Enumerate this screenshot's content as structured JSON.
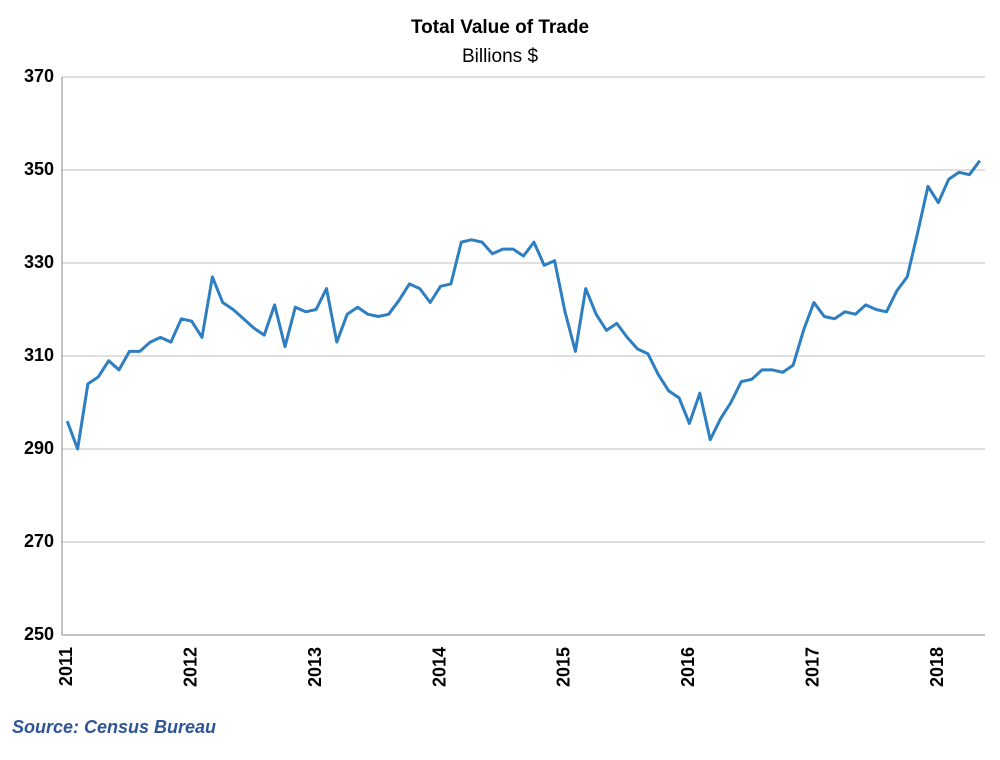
{
  "chart_data": {
    "type": "line",
    "title": "Total Value of Trade",
    "subtitle": "Billions $",
    "source": "Source: Census Bureau",
    "categories": [
      "2011",
      null,
      null,
      null,
      null,
      null,
      null,
      null,
      null,
      null,
      null,
      null,
      "2012",
      null,
      null,
      null,
      null,
      null,
      null,
      null,
      null,
      null,
      null,
      null,
      "2013",
      null,
      null,
      null,
      null,
      null,
      null,
      null,
      null,
      null,
      null,
      null,
      "2014",
      null,
      null,
      null,
      null,
      null,
      null,
      null,
      null,
      null,
      null,
      null,
      "2015",
      null,
      null,
      null,
      null,
      null,
      null,
      null,
      null,
      null,
      null,
      null,
      "2016",
      null,
      null,
      null,
      null,
      null,
      null,
      null,
      null,
      null,
      null,
      null,
      "2017",
      null,
      null,
      null,
      null,
      null,
      null,
      null,
      null,
      null,
      null,
      null,
      "2018",
      null,
      null,
      null,
      null
    ],
    "values": [
      296,
      290,
      304,
      305.5,
      309,
      307,
      311,
      311,
      313,
      314,
      313,
      318,
      317.5,
      314,
      327,
      321.5,
      320,
      318,
      316,
      314.5,
      321,
      312,
      320.5,
      319.5,
      320,
      324.5,
      313,
      319,
      320.5,
      319,
      318.5,
      319,
      322,
      325.5,
      324.5,
      321.5,
      325,
      325.5,
      334.5,
      335,
      334.5,
      332,
      333,
      333,
      331.5,
      334.5,
      329.5,
      330.5,
      319.5,
      311,
      324.5,
      319,
      315.5,
      317,
      314,
      311.5,
      310.5,
      306,
      302.5,
      301,
      295.5,
      302,
      292,
      296.5,
      300,
      304.5,
      305,
      307,
      307,
      306.5,
      308,
      315.5,
      321.5,
      318.5,
      318,
      319.5,
      319,
      321,
      320,
      319.5,
      324,
      327,
      336.5,
      346.5,
      343,
      348,
      349.5,
      349,
      352
    ],
    "color": "#2e7fc1",
    "ylim": [
      250,
      370
    ],
    "yticks": [
      250,
      270,
      290,
      310,
      330,
      350,
      370
    ],
    "grid": true
  }
}
